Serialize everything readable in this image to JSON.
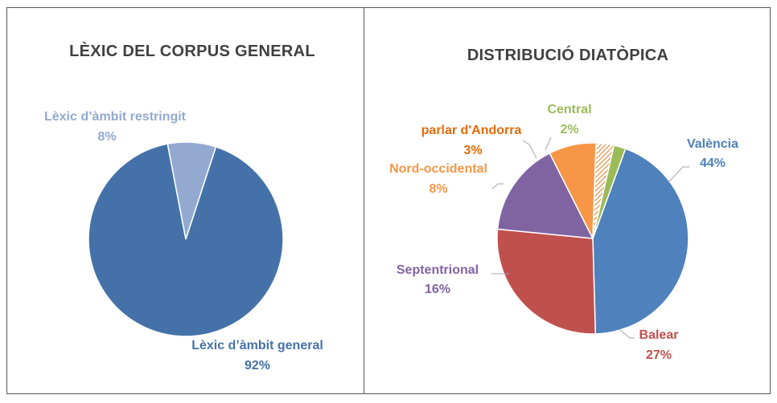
{
  "chart_data": [
    {
      "type": "pie",
      "title": "LÈXIC DEL CORPUS GENERAL",
      "slices": [
        {
          "label": "Lèxic d’àmbit general",
          "value": 92,
          "value_label": "92%",
          "color": "#4472A8",
          "hatched": false
        },
        {
          "label": "Lèxic d’àmbit restringit",
          "value": 8,
          "value_label": "8%",
          "color": "#93A9D0",
          "hatched": false
        }
      ],
      "start_angle_deg": 18,
      "label_colors": [
        "#4472A8",
        "#93A9D0"
      ]
    },
    {
      "type": "pie",
      "title": "DISTRIBUCIÓ DIATÒPICA",
      "slices": [
        {
          "label": "València",
          "value": 44,
          "value_label": "44%",
          "color": "#4F81BD",
          "hatched": false
        },
        {
          "label": "Balear",
          "value": 27,
          "value_label": "27%",
          "color": "#C0504D",
          "hatched": false
        },
        {
          "label": "Septentrional",
          "value": 16,
          "value_label": "16%",
          "color": "#8064A2",
          "hatched": false
        },
        {
          "label": "Nord-occidental",
          "value": 8,
          "value_label": "8%",
          "color": "#F79646",
          "hatched": false
        },
        {
          "label": "parlar d'Andorra",
          "value": 3,
          "value_label": "3%",
          "color": "#F79646",
          "hatched": true
        },
        {
          "label": "Central",
          "value": 2,
          "value_label": "2%",
          "color": "#9BBB59",
          "hatched": false
        }
      ],
      "start_angle_deg": 20,
      "label_colors": [
        "#4F81BD",
        "#C0504D",
        "#8064A2",
        "#F79646",
        "#E36C09",
        "#9BBB59"
      ]
    }
  ]
}
